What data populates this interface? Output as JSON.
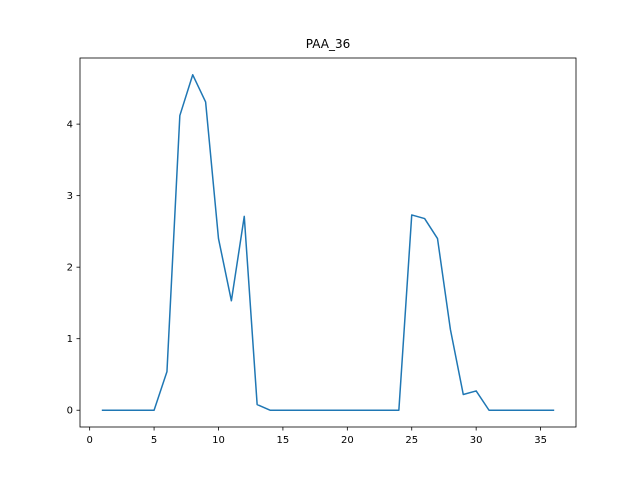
{
  "chart_data": {
    "type": "line",
    "title": "PAA_36",
    "xlabel": "",
    "ylabel": "",
    "x": [
      1,
      2,
      3,
      4,
      5,
      6,
      7,
      8,
      9,
      10,
      11,
      12,
      13,
      14,
      15,
      16,
      17,
      18,
      19,
      20,
      21,
      22,
      23,
      24,
      25,
      26,
      27,
      28,
      29,
      30,
      31,
      32,
      33,
      34,
      35,
      36
    ],
    "series": [
      {
        "values": [
          0,
          0,
          0,
          0,
          0,
          0.54,
          4.12,
          4.69,
          4.31,
          2.4,
          1.53,
          2.71,
          0.08,
          0,
          0,
          0,
          0,
          0,
          0,
          0,
          0,
          0,
          0,
          0,
          2.73,
          2.68,
          2.4,
          1.13,
          0.22,
          0.27,
          0,
          0,
          0,
          0,
          0,
          0
        ]
      }
    ],
    "xlim": [
      -0.75,
      37.75
    ],
    "ylim": [
      -0.2345,
      4.9245
    ],
    "xticks": [
      "0",
      "5",
      "10",
      "15",
      "20",
      "25",
      "30",
      "35"
    ],
    "yticks": [
      "0",
      "1",
      "2",
      "3",
      "4"
    ],
    "grid": false,
    "colors": {
      "line": "#1f77b4"
    }
  }
}
